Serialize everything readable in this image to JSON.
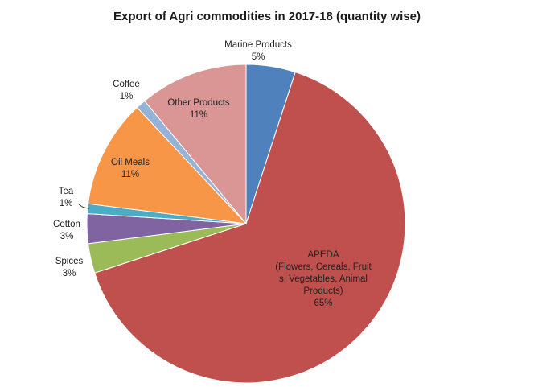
{
  "chart_data": {
    "type": "pie",
    "title": "Export of Agri commodities in 2017-18 (quantity wise)",
    "slices": [
      {
        "name": "Marine Products",
        "value": 5,
        "label": "5%",
        "color": "#4f81bd"
      },
      {
        "name": "APEDA",
        "value": 65,
        "label": "65%",
        "color": "#c0504d",
        "display_lines": [
          "APEDA",
          "(Flowers, Cereals, Fruit",
          "s, Vegetables, Animal",
          "Products)"
        ]
      },
      {
        "name": "Spices",
        "value": 3,
        "label": "3%",
        "color": "#9bbb59"
      },
      {
        "name": "Cotton",
        "value": 3,
        "label": "3%",
        "color": "#8064a2"
      },
      {
        "name": "Tea",
        "value": 1,
        "label": "1%",
        "color": "#4bacc6"
      },
      {
        "name": "Oil Meals",
        "value": 11,
        "label": "11%",
        "color": "#f79646"
      },
      {
        "name": "Coffee",
        "value": 1,
        "label": "1%",
        "color": "#95b3d7"
      },
      {
        "name": "Other Products",
        "value": 11,
        "label": "11%",
        "color": "#d99694"
      }
    ]
  }
}
